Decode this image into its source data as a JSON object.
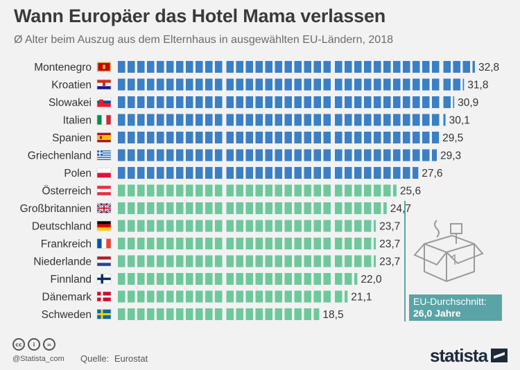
{
  "title": "Wann Europäer das Hotel Mama verlassen",
  "subtitle": "Ø Alter beim Auszug aus dem Elternhaus in ausgewählten EU-Ländern, 2018",
  "callout": {
    "label": "EU-Durchschnitt:",
    "value": "26,0 Jahre"
  },
  "footer": {
    "handle": "@Statista_com",
    "source_label": "Quelle:",
    "source": "Eurostat",
    "brand": "statista"
  },
  "colors": {
    "above_average": "#3b7fc4",
    "below_average": "#6ec89b",
    "callout": "#5aa3a6",
    "label": "#333333"
  },
  "chart_data": {
    "type": "bar",
    "orientation": "horizontal",
    "title": "Wann Europäer das Hotel Mama verlassen",
    "subtitle": "Ø Alter beim Auszug aus dem Elternhaus in ausgewählten EU-Ländern, 2018",
    "xlim": [
      0,
      33
    ],
    "average": 26.0,
    "categories": [
      "Montenegro",
      "Kroatien",
      "Slowakei",
      "Italien",
      "Spanien",
      "Griechenland",
      "Polen",
      "Österreich",
      "Großbritannien",
      "Deutschland",
      "Frankreich",
      "Niederlande",
      "Finnland",
      "Dänemark",
      "Schweden"
    ],
    "values": [
      32.8,
      31.8,
      30.9,
      30.1,
      29.5,
      29.3,
      27.6,
      25.6,
      24.7,
      23.7,
      23.7,
      23.7,
      22.0,
      21.1,
      18.5
    ],
    "value_labels": [
      "32,8",
      "31,8",
      "30,9",
      "30,1",
      "29,5",
      "29,3",
      "27,6",
      "25,6",
      "24,7",
      "23,7",
      "23,7",
      "23,7",
      "22,0",
      "21,1",
      "18,5"
    ],
    "flags": [
      "montenegro-flag",
      "croatia-flag",
      "slovakia-flag",
      "italy-flag",
      "spain-flag",
      "greece-flag",
      "poland-flag",
      "austria-flag",
      "uk-flag",
      "germany-flag",
      "france-flag",
      "netherlands-flag",
      "finland-flag",
      "denmark-flag",
      "sweden-flag"
    ]
  }
}
